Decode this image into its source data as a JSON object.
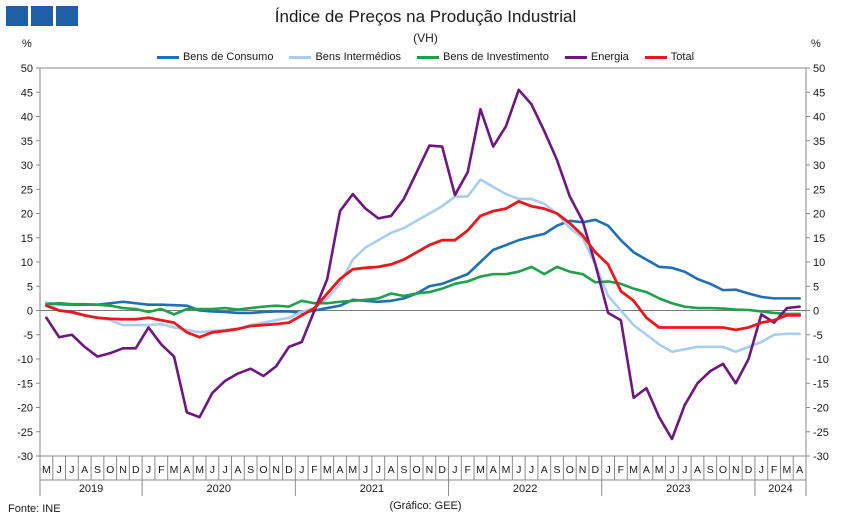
{
  "header": {
    "title": "Índice de Preços na Produção Industrial",
    "subtitle": "(VH)",
    "y_unit_left": "%",
    "y_unit_right": "%",
    "source": "Fonte: INE",
    "credit": "(Gráfico: GEE)"
  },
  "chart_data": {
    "type": "line",
    "title": "Índice de Preços na Produção Industrial",
    "subtitle": "(VH)",
    "ylabel": "%",
    "ylim": [
      -30,
      50
    ],
    "yticks": [
      -30,
      -25,
      -20,
      -15,
      -10,
      -5,
      0,
      5,
      10,
      15,
      20,
      25,
      30,
      35,
      40,
      45,
      50
    ],
    "legend_position": "top-center",
    "x": [
      "M",
      "J",
      "J",
      "A",
      "S",
      "O",
      "N",
      "D",
      "J",
      "F",
      "M",
      "A",
      "M",
      "J",
      "J",
      "A",
      "S",
      "O",
      "N",
      "D",
      "J",
      "F",
      "M",
      "A",
      "M",
      "J",
      "J",
      "A",
      "S",
      "O",
      "N",
      "D",
      "J",
      "F",
      "M",
      "A",
      "M",
      "J",
      "J",
      "A",
      "S",
      "O",
      "N",
      "D",
      "J",
      "F",
      "M",
      "A",
      "M",
      "J",
      "J",
      "A",
      "S",
      "O",
      "N",
      "D",
      "J",
      "F",
      "M",
      "A"
    ],
    "years": [
      {
        "label": "2019",
        "start": 0,
        "end": 8
      },
      {
        "label": "2020",
        "start": 8,
        "end": 20
      },
      {
        "label": "2021",
        "start": 20,
        "end": 32
      },
      {
        "label": "2022",
        "start": 32,
        "end": 44
      },
      {
        "label": "2023",
        "start": 44,
        "end": 56
      },
      {
        "label": "2024",
        "start": 56,
        "end": 60
      }
    ],
    "series": [
      {
        "name": "Bens de Consumo",
        "color": "#1f6fb4",
        "values": [
          1.5,
          1.3,
          1.2,
          1.2,
          1.2,
          1.5,
          1.8,
          1.5,
          1.2,
          1.2,
          1.1,
          1.0,
          0.0,
          -0.2,
          -0.3,
          -0.5,
          -0.5,
          -0.3,
          -0.2,
          -0.2,
          -0.5,
          0.0,
          0.5,
          1.0,
          2.2,
          2.0,
          1.8,
          2.0,
          2.5,
          3.5,
          5.0,
          5.5,
          6.5,
          7.5,
          10.0,
          12.5,
          13.5,
          14.5,
          15.2,
          15.8,
          17.5,
          18.5,
          18.2,
          18.7,
          17.5,
          14.5,
          12.0,
          10.5,
          9.0,
          8.8,
          8.0,
          6.5,
          5.5,
          4.2,
          4.3,
          3.5,
          2.8,
          2.5,
          2.5,
          2.5
        ]
      },
      {
        "name": "Bens Intermédios",
        "color": "#a9cdee",
        "values": [
          1.7,
          0.0,
          -0.5,
          -1.0,
          -1.5,
          -2.0,
          -3.0,
          -3.0,
          -3.0,
          -2.8,
          -3.5,
          -4.0,
          -4.5,
          -4.2,
          -4.0,
          -3.8,
          -3.0,
          -2.5,
          -2.0,
          -1.5,
          -0.3,
          0.5,
          2.5,
          5.5,
          10.5,
          13.0,
          14.5,
          16.0,
          17.0,
          18.5,
          20.0,
          21.5,
          23.5,
          23.5,
          27.0,
          25.5,
          24.0,
          23.0,
          23.0,
          22.0,
          20.0,
          17.0,
          15.0,
          9.5,
          3.0,
          0.0,
          -3.0,
          -5.0,
          -7.0,
          -8.5,
          -8.0,
          -7.5,
          -7.5,
          -7.5,
          -8.5,
          -7.5,
          -6.5,
          -5.0,
          -4.8,
          -4.8
        ]
      },
      {
        "name": "Bens de Investimento",
        "color": "#20a04a",
        "values": [
          1.3,
          1.5,
          1.3,
          1.3,
          1.2,
          1.0,
          0.5,
          0.3,
          -0.3,
          0.3,
          -0.8,
          0.3,
          0.3,
          0.3,
          0.5,
          0.2,
          0.5,
          0.8,
          1.0,
          0.8,
          2.0,
          1.5,
          1.5,
          1.8,
          2.0,
          2.2,
          2.5,
          3.5,
          3.0,
          3.5,
          3.8,
          4.5,
          5.5,
          6.0,
          7.0,
          7.5,
          7.5,
          8.0,
          9.0,
          7.5,
          9.0,
          8.0,
          7.5,
          5.8,
          6.0,
          5.5,
          4.5,
          3.8,
          2.5,
          1.5,
          0.8,
          0.5,
          0.5,
          0.4,
          0.2,
          0.1,
          -0.2,
          -0.5,
          -0.7,
          -0.7
        ]
      },
      {
        "name": "Energia",
        "color": "#6e1780",
        "values": [
          -1.5,
          -5.5,
          -5.0,
          -7.5,
          -9.5,
          -8.8,
          -7.8,
          -7.8,
          -3.5,
          -7.0,
          -9.5,
          -21.0,
          -22.0,
          -17.0,
          -14.5,
          -13.0,
          -12.0,
          -13.5,
          -11.5,
          -7.5,
          -6.5,
          0.0,
          6.5,
          20.5,
          24.0,
          21.0,
          19.0,
          19.5,
          23.0,
          28.5,
          34.0,
          33.8,
          23.8,
          28.5,
          41.5,
          33.8,
          38.0,
          45.5,
          42.5,
          37.0,
          31.0,
          23.5,
          18.5,
          9.5,
          -0.5,
          -2.0,
          -18.0,
          -16.0,
          -22.0,
          -26.5,
          -19.5,
          -15.0,
          -12.5,
          -11.0,
          -15.0,
          -10.0,
          -0.8,
          -2.5,
          0.5,
          0.8
        ]
      },
      {
        "name": "Total",
        "color": "#e8181d",
        "values": [
          1.0,
          0.0,
          -0.3,
          -1.0,
          -1.5,
          -1.7,
          -1.8,
          -1.8,
          -1.5,
          -2.0,
          -2.5,
          -4.5,
          -5.5,
          -4.5,
          -4.2,
          -3.8,
          -3.2,
          -3.0,
          -2.8,
          -2.5,
          -1.0,
          0.5,
          3.5,
          6.5,
          8.5,
          8.8,
          9.0,
          9.5,
          10.5,
          12.0,
          13.5,
          14.5,
          14.5,
          16.5,
          19.5,
          20.5,
          21.0,
          22.5,
          21.5,
          21.0,
          20.0,
          18.0,
          15.5,
          12.0,
          9.5,
          4.0,
          2.0,
          -1.5,
          -3.5,
          -3.5,
          -3.5,
          -3.5,
          -3.5,
          -3.5,
          -4.0,
          -3.5,
          -2.5,
          -2.0,
          -1.0,
          -1.0
        ]
      }
    ]
  }
}
